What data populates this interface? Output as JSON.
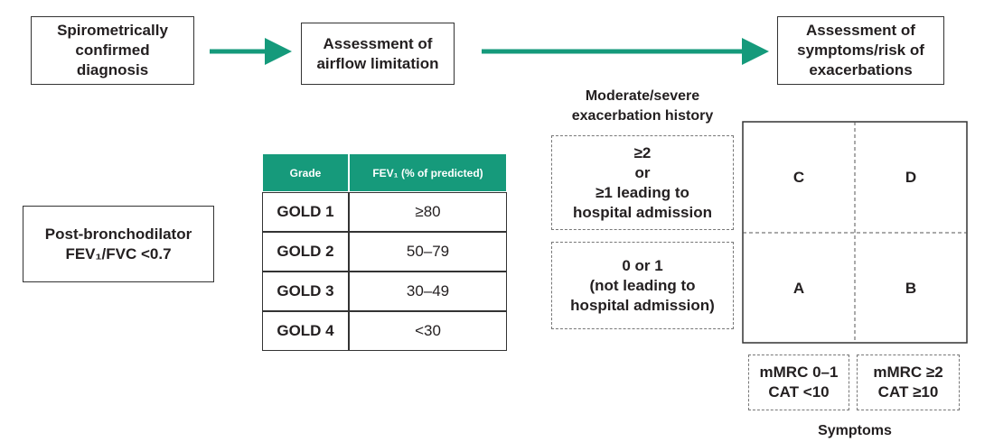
{
  "steps": [
    {
      "lines": [
        "Spirometrically",
        "confirmed",
        "diagnosis"
      ]
    },
    {
      "lines": [
        "Assessment of",
        "airflow limitation"
      ]
    },
    {
      "lines": [
        "Assessment of",
        "symptoms/risk of",
        "exacerbations"
      ]
    }
  ],
  "criterion": {
    "lines": [
      "Post-bronchodilator",
      "FEV₁/FVC <0.7"
    ]
  },
  "table": {
    "header": [
      "Grade",
      "FEV₁ (% of predicted)"
    ],
    "rows": [
      [
        "GOLD 1",
        "≥80"
      ],
      [
        "GOLD 2",
        "50–79"
      ],
      [
        "GOLD 3",
        "30–49"
      ],
      [
        "GOLD 4",
        "<30"
      ]
    ]
  },
  "exacerbation": {
    "title": [
      "Moderate/severe",
      "exacerbation history"
    ],
    "options": [
      [
        "≥2",
        "or",
        "≥1 leading to",
        "hospital admission"
      ],
      [
        "0 or 1",
        "(not leading to",
        "hospital admission)"
      ]
    ]
  },
  "grid": {
    "cells": [
      "C",
      "D",
      "A",
      "B"
    ]
  },
  "symptoms": {
    "options": [
      [
        "mMRC 0–1",
        "CAT <10"
      ],
      [
        "mMRC ≥2",
        "CAT ≥10"
      ]
    ],
    "title": "Symptoms"
  }
}
